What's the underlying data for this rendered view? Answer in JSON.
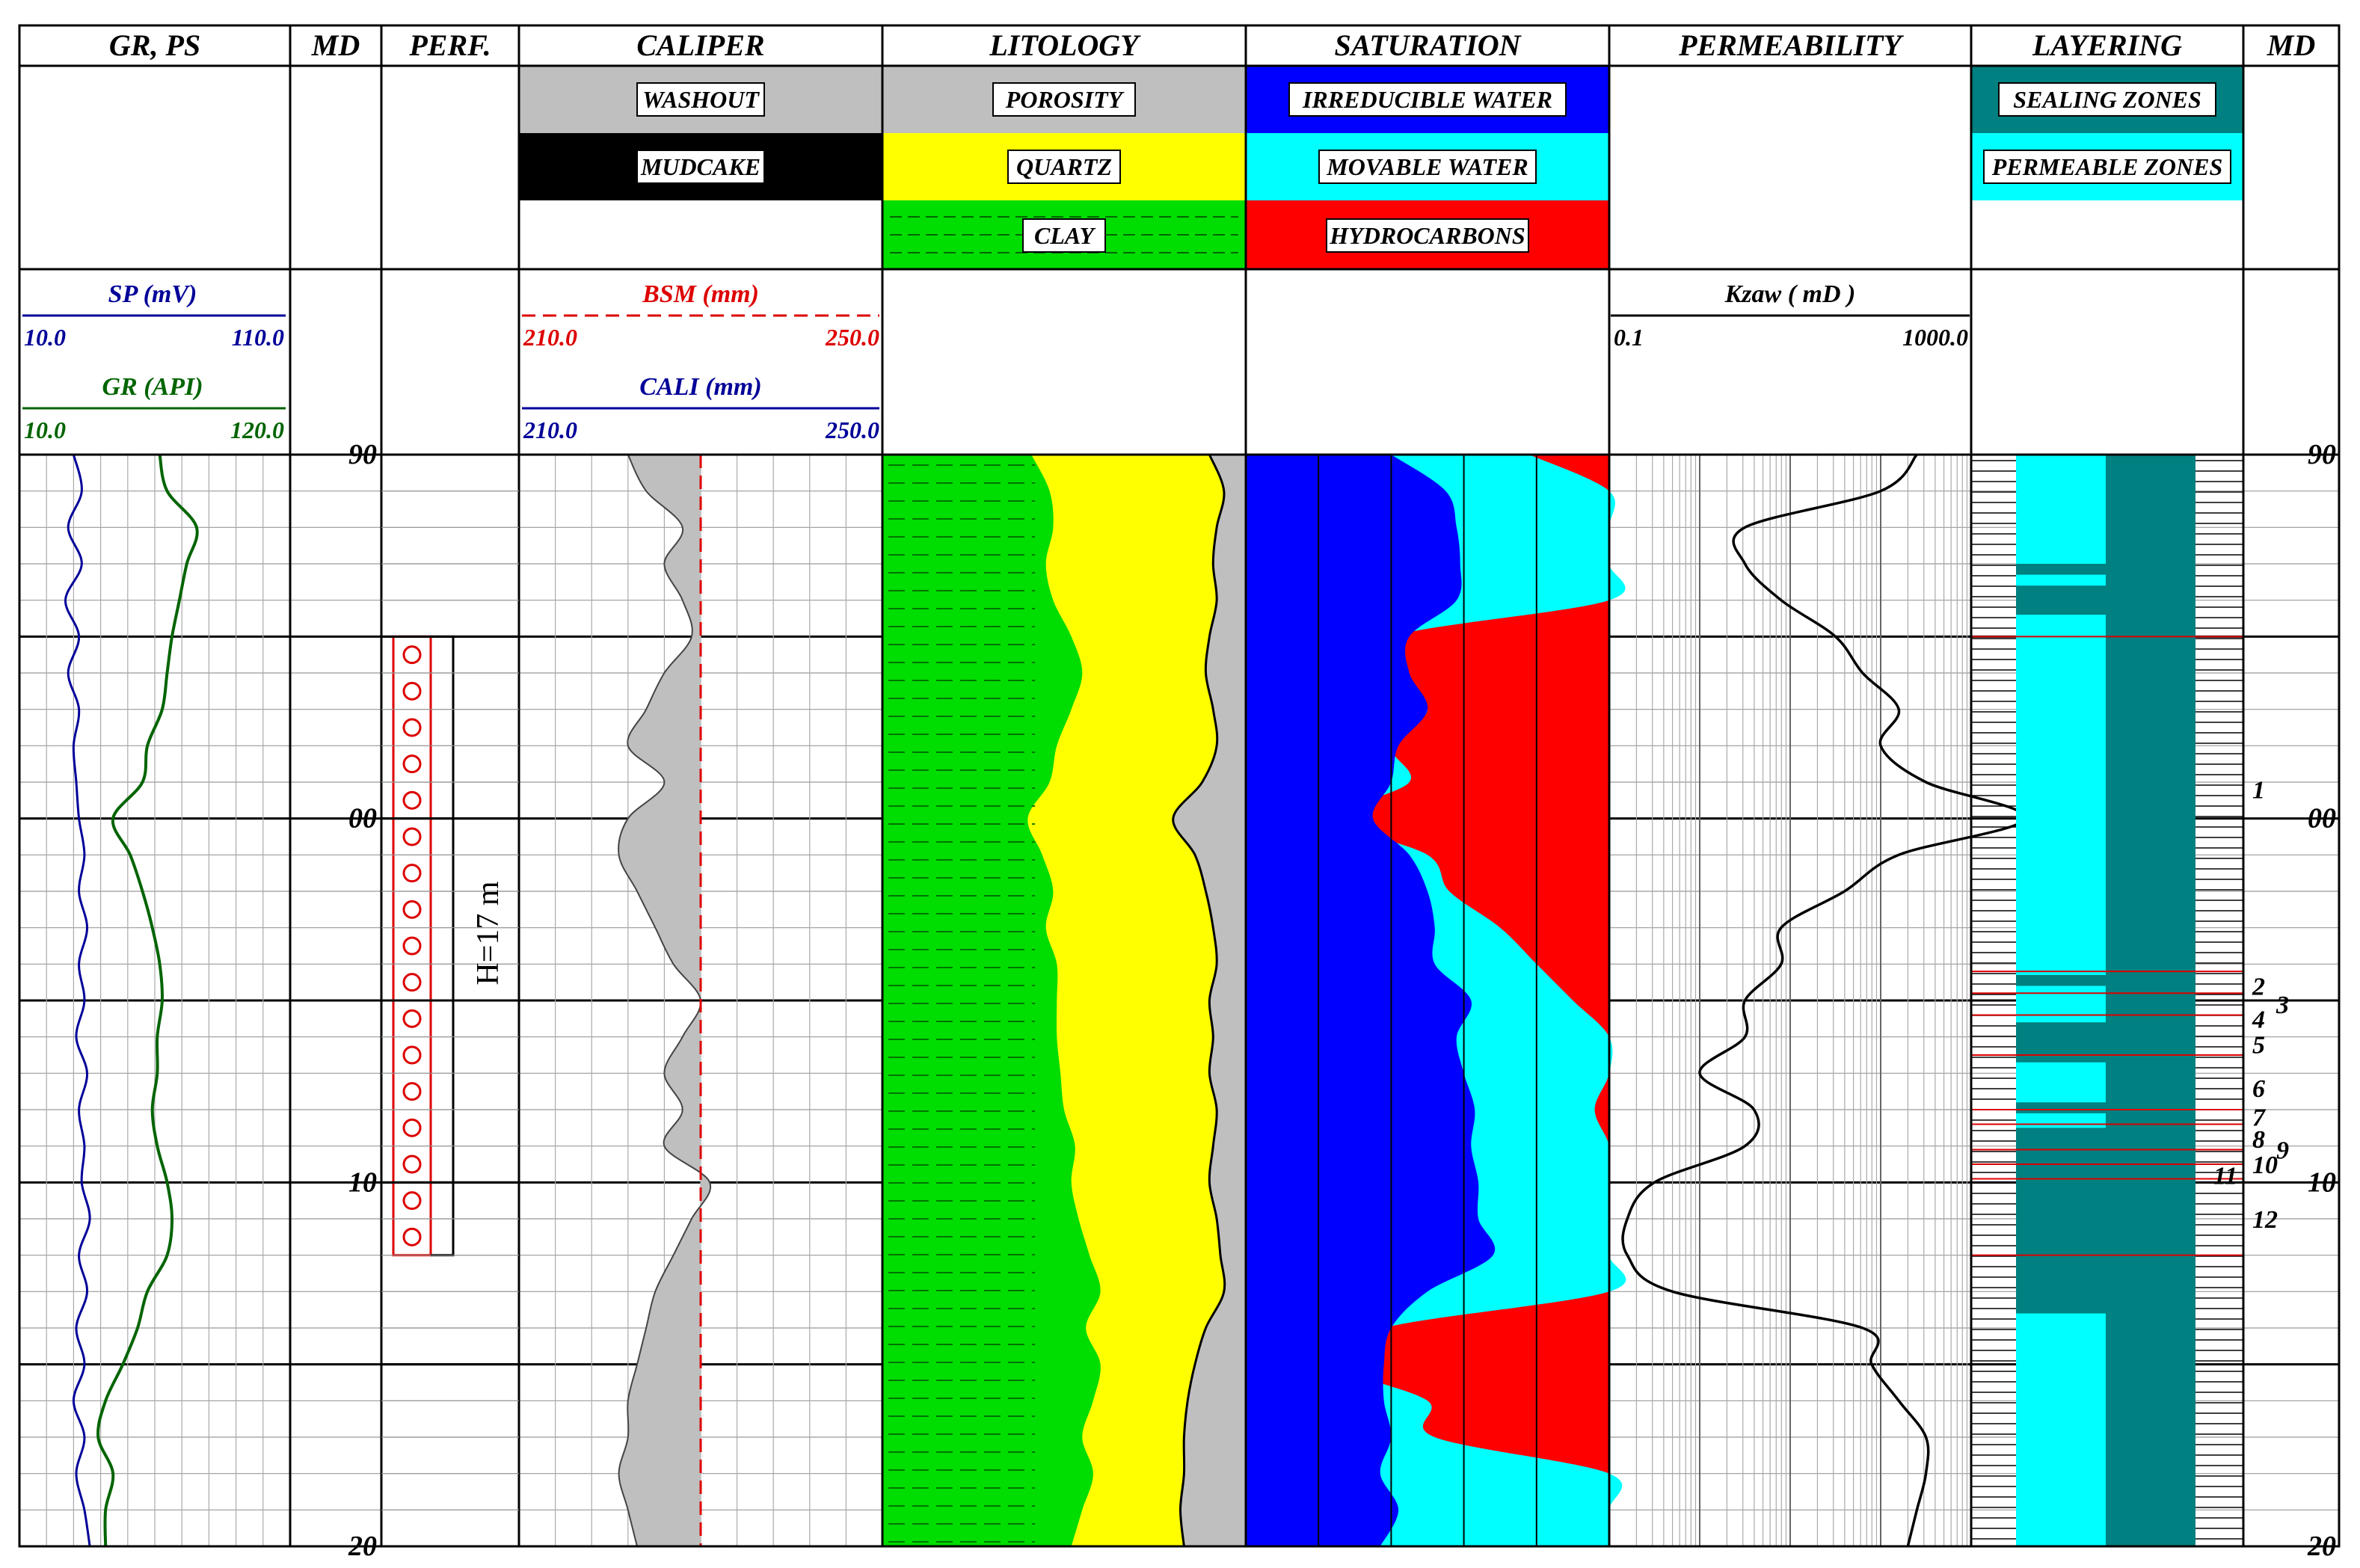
{
  "colors": {
    "washout": "#bfbfbf",
    "mudcake": "#000000",
    "quartz": "#ffff00",
    "clay": "#00dd00",
    "irreducible": "#0000ff",
    "movable": "#00ffff",
    "hydrocarbons": "#ff0000",
    "sealing": "#008080",
    "permeable": "#00ffff",
    "sp": "#000099",
    "gr": "#006400",
    "bsm": "#dd0000",
    "cali": "#000099"
  },
  "tracks": [
    {
      "id": "grps",
      "title": "GR, PS"
    },
    {
      "id": "md1",
      "title": "MD"
    },
    {
      "id": "perf",
      "title": "PERF."
    },
    {
      "id": "caliper",
      "title": "CALIPER"
    },
    {
      "id": "lith",
      "title": "LITOLOGY"
    },
    {
      "id": "sat",
      "title": "SATURATION"
    },
    {
      "id": "perm",
      "title": "PERMEABILITY"
    },
    {
      "id": "layer",
      "title": "LAYERING"
    },
    {
      "id": "md2",
      "title": "MD"
    }
  ],
  "legend": {
    "caliper": [
      "WASHOUT",
      "MUDCAKE"
    ],
    "lithology": [
      "POROSITY",
      "QUARTZ",
      "CLAY"
    ],
    "saturation": [
      "IRREDUCIBLE WATER",
      "MOVABLE WATER",
      "HYDROCARBONS"
    ],
    "layering": [
      "SEALING ZONES",
      "PERMEABLE ZONES"
    ]
  },
  "curves": {
    "sp": {
      "label": "SP (mV)",
      "min": "10.0",
      "max": "110.0"
    },
    "gr": {
      "label": "GR (API)",
      "min": "10.0",
      "max": "120.0"
    },
    "bsm": {
      "label": "BSM (mm)",
      "min": "210.0",
      "max": "250.0"
    },
    "cali": {
      "label": "CALI (mm)",
      "min": "210.0",
      "max": "250.0"
    },
    "kzaw": {
      "label": "Kzaw ( mD )",
      "min": "0.1",
      "max": "1000.0"
    }
  },
  "perf_label": "H=17 m",
  "chart_data": {
    "type": "well-log",
    "depth_range": [
      -10,
      20
    ],
    "depth_labels": [
      {
        "depth": -10,
        "text": "90"
      },
      {
        "depth": 0,
        "text": "00"
      },
      {
        "depth": 10,
        "text": "10"
      },
      {
        "depth": 20,
        "text": "20"
      }
    ],
    "depth": [
      -10,
      -9,
      -8,
      -7,
      -6,
      -5,
      -4,
      -3,
      -2,
      -1,
      0,
      1,
      2,
      3,
      4,
      5,
      6,
      7,
      8,
      9,
      10,
      11,
      12,
      13,
      14,
      15,
      16,
      17,
      18,
      19,
      20
    ],
    "sp": [
      30,
      33,
      28,
      33,
      27,
      32,
      28,
      32,
      30,
      31,
      32,
      34,
      32,
      35,
      32,
      34,
      31,
      35,
      32,
      34,
      33,
      36,
      32,
      35,
      31,
      34,
      30,
      34,
      31,
      34,
      36
    ],
    "gr": [
      67,
      70,
      82,
      78,
      75,
      72,
      70,
      68,
      62,
      60,
      48,
      55,
      60,
      64,
      67,
      68,
      66,
      66,
      64,
      66,
      70,
      72,
      70,
      62,
      58,
      52,
      45,
      42,
      48,
      45,
      45
    ],
    "cali": [
      222,
      224,
      228,
      226,
      228,
      229,
      226,
      224,
      222,
      226,
      222,
      221,
      223,
      225,
      227,
      230,
      228,
      226,
      228,
      226,
      231,
      229,
      227,
      225,
      224,
      223,
      222,
      222,
      221,
      222,
      223
    ],
    "bsm": 230,
    "clay_frac": [
      0.41,
      0.46,
      0.47,
      0.45,
      0.47,
      0.52,
      0.55,
      0.52,
      0.48,
      0.46,
      0.4,
      0.44,
      0.47,
      0.45,
      0.48,
      0.48,
      0.48,
      0.49,
      0.5,
      0.53,
      0.52,
      0.54,
      0.57,
      0.6,
      0.56,
      0.6,
      0.58,
      0.55,
      0.58,
      0.55,
      0.52
    ],
    "quartz_frac": [
      0.9,
      0.94,
      0.92,
      0.91,
      0.92,
      0.9,
      0.89,
      0.91,
      0.92,
      0.88,
      0.8,
      0.86,
      0.89,
      0.91,
      0.92,
      0.9,
      0.91,
      0.9,
      0.92,
      0.91,
      0.9,
      0.92,
      0.93,
      0.94,
      0.89,
      0.86,
      0.84,
      0.83,
      0.83,
      0.82,
      0.83
    ],
    "irreducible_frac": [
      0.4,
      0.55,
      0.58,
      0.59,
      0.58,
      0.45,
      0.45,
      0.5,
      0.42,
      0.4,
      0.35,
      0.45,
      0.5,
      0.52,
      0.52,
      0.62,
      0.58,
      0.6,
      0.63,
      0.62,
      0.64,
      0.64,
      0.68,
      0.5,
      0.4,
      0.38,
      0.38,
      0.4,
      0.37,
      0.42,
      0.37
    ],
    "hc_start_frac": [
      0.78,
      1.0,
      1.0,
      1.0,
      1.0,
      0.4,
      0.4,
      0.5,
      0.4,
      0.45,
      0.25,
      0.5,
      0.56,
      0.7,
      0.8,
      0.9,
      1.0,
      1.0,
      0.96,
      1.0,
      1.0,
      1.0,
      1.0,
      1.0,
      0.38,
      0.25,
      0.5,
      0.52,
      1.0,
      1.0,
      1.0
    ],
    "perm_log": [
      2.4,
      2.0,
      0.5,
      0.5,
      0.9,
      1.5,
      1.8,
      2.2,
      2.0,
      2.5,
      3.6,
      2.2,
      1.6,
      0.9,
      0.9,
      0.5,
      0.5,
      0.0,
      0.6,
      0.5,
      -0.5,
      -0.8,
      -0.8,
      -0.3,
      1.8,
      1.9,
      2.2,
      2.5,
      2.5,
      2.4,
      2.3
    ],
    "sealing_intervals": [
      [
        -7.0,
        -6.7
      ],
      [
        -6.4,
        -5.6
      ],
      [
        4.3,
        4.6
      ],
      [
        5.6,
        6.7
      ],
      [
        7.8,
        8.1
      ],
      [
        8.5,
        13.6
      ]
    ],
    "layers": [
      {
        "n": "1",
        "depth": -0.8
      },
      {
        "n": "2",
        "depth": 4.6
      },
      {
        "n": "3",
        "depth": 5.1
      },
      {
        "n": "4",
        "depth": 5.5
      },
      {
        "n": "5",
        "depth": 6.2
      },
      {
        "n": "6",
        "depth": 7.4
      },
      {
        "n": "7",
        "depth": 8.2
      },
      {
        "n": "8",
        "depth": 8.8
      },
      {
        "n": "9",
        "depth": 9.1
      },
      {
        "n": "10",
        "depth": 9.5
      },
      {
        "n": "11",
        "depth": 9.8
      },
      {
        "n": "12",
        "depth": 11.0
      }
    ]
  }
}
